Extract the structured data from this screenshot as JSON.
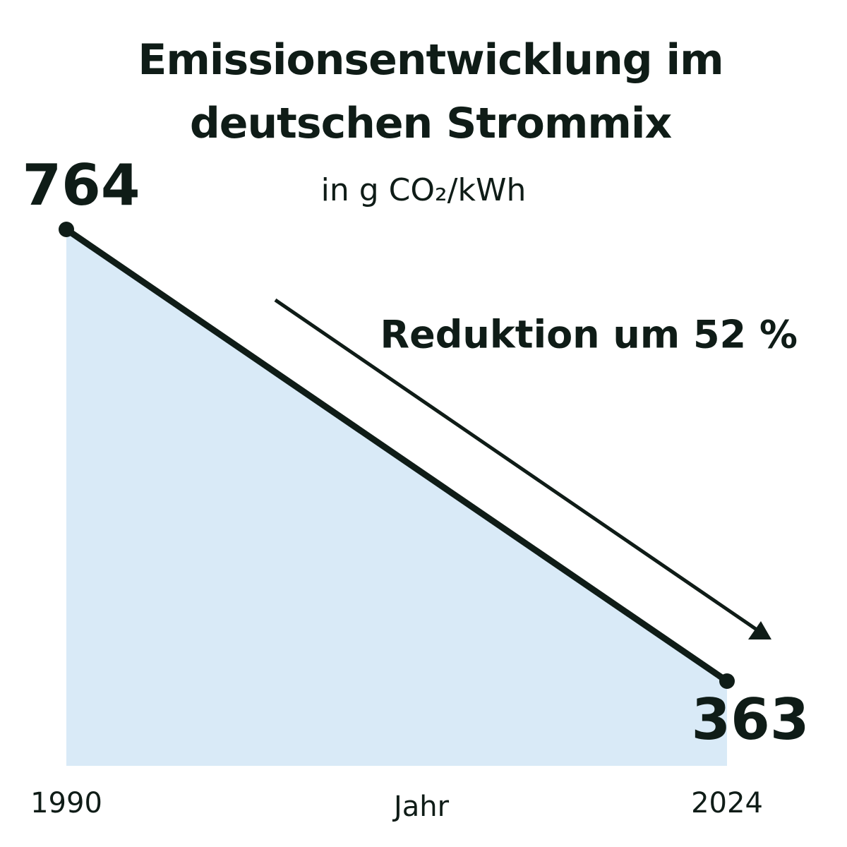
{
  "chart_data": {
    "type": "area",
    "title": "Emissionsentwicklung im deutschen Strommix",
    "subtitle": "in g CO₂/kWh",
    "annotation": "Reduktion um 52 %",
    "x_label": "Jahr",
    "x": [
      1990,
      2024
    ],
    "values": [
      764,
      363
    ],
    "xlim": [
      1990,
      2024
    ],
    "xticks": [
      1990,
      2024
    ],
    "line_color": "#0f1c17",
    "fill_color": "#d9eaf7"
  }
}
